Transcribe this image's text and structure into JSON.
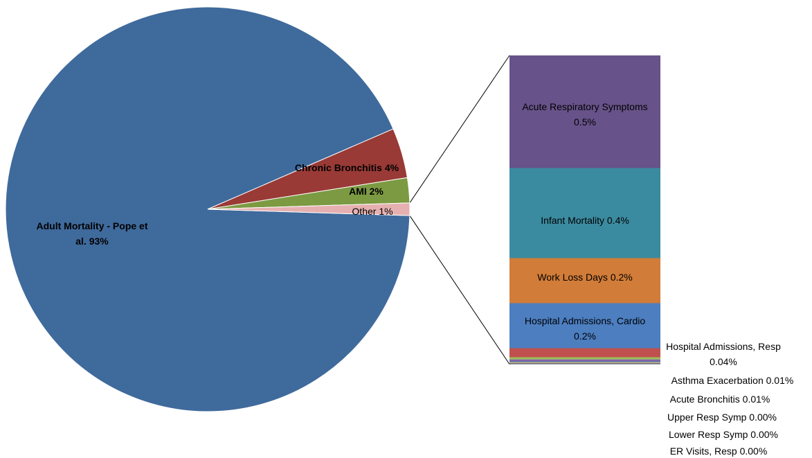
{
  "chart_data": {
    "type": "bar-of-pie",
    "pie": {
      "slices": [
        {
          "label": "Adult Mortality - Pope et al.",
          "value": 93,
          "value_label": "93%",
          "color": "#3F6A9C",
          "label_lines": [
            "Adult Mortality - Pope et",
            "al. 93%"
          ],
          "bold": true
        },
        {
          "label": "Chronic Bronchitis",
          "value": 4,
          "value_label": "4%",
          "color": "#993A36",
          "label_lines": [
            "Chronic Bronchitis 4%"
          ],
          "bold": true
        },
        {
          "label": "AMI",
          "value": 2,
          "value_label": "2%",
          "color": "#7C9A42",
          "label_lines": [
            "AMI 2%"
          ],
          "bold": true
        },
        {
          "label": "Other",
          "value": 1,
          "value_label": "1%",
          "color": "#E6B0B0",
          "label_lines": [
            "Other 1%"
          ],
          "bold": false
        }
      ]
    },
    "bar": {
      "segments": [
        {
          "label": "Acute Respiratory Symptoms",
          "value": 0.5,
          "value_label": "0.5%",
          "color": "#675289",
          "label_lines": [
            "Acute Respiratory Symptoms",
            "0.5%"
          ]
        },
        {
          "label": "Infant Mortality",
          "value": 0.4,
          "value_label": "0.4%",
          "color": "#3B8BA0",
          "label_lines": [
            "Infant Mortality 0.4%"
          ]
        },
        {
          "label": "Work Loss Days",
          "value": 0.2,
          "value_label": "0.2%",
          "color": "#D17C38",
          "label_lines": [
            "Work Loss Days 0.2%"
          ]
        },
        {
          "label": "Hospital Admissions, Cardio",
          "value": 0.2,
          "value_label": "0.2%",
          "color": "#4C7EC0",
          "label_lines": [
            "Hospital Admissions, Cardio",
            "0.2%"
          ]
        },
        {
          "label": "Hospital Admissions, Resp",
          "value": 0.04,
          "value_label": "0.04%",
          "color": "#C0504D",
          "label_lines": [
            "Hospital Admissions, Resp",
            "0.04%"
          ]
        },
        {
          "label": "Asthma Exacerbation",
          "value": 0.01,
          "value_label": "0.01%",
          "color": "#9BBB59",
          "label_lines": [
            "Asthma Exacerbation 0.01%"
          ]
        },
        {
          "label": "Acute Bronchitis",
          "value": 0.01,
          "value_label": "0.01%",
          "color": "#8064A2",
          "label_lines": [
            "Acute Bronchitis 0.01%"
          ]
        },
        {
          "label": "Upper Resp Symp",
          "value": 0.0,
          "value_label": "0.00%",
          "color": "#4BACC6",
          "label_lines": [
            "Upper Resp Symp 0.00%"
          ]
        },
        {
          "label": "Lower Resp Symp",
          "value": 0.0,
          "value_label": "0.00%",
          "color": "#F79646",
          "label_lines": [
            "Lower Resp Symp 0.00%"
          ]
        },
        {
          "label": "ER Visits, Resp",
          "value": 0.0,
          "value_label": "0.00%",
          "color": "#2C4D75",
          "label_lines": [
            "ER Visits, Resp 0.00%"
          ]
        }
      ]
    }
  }
}
